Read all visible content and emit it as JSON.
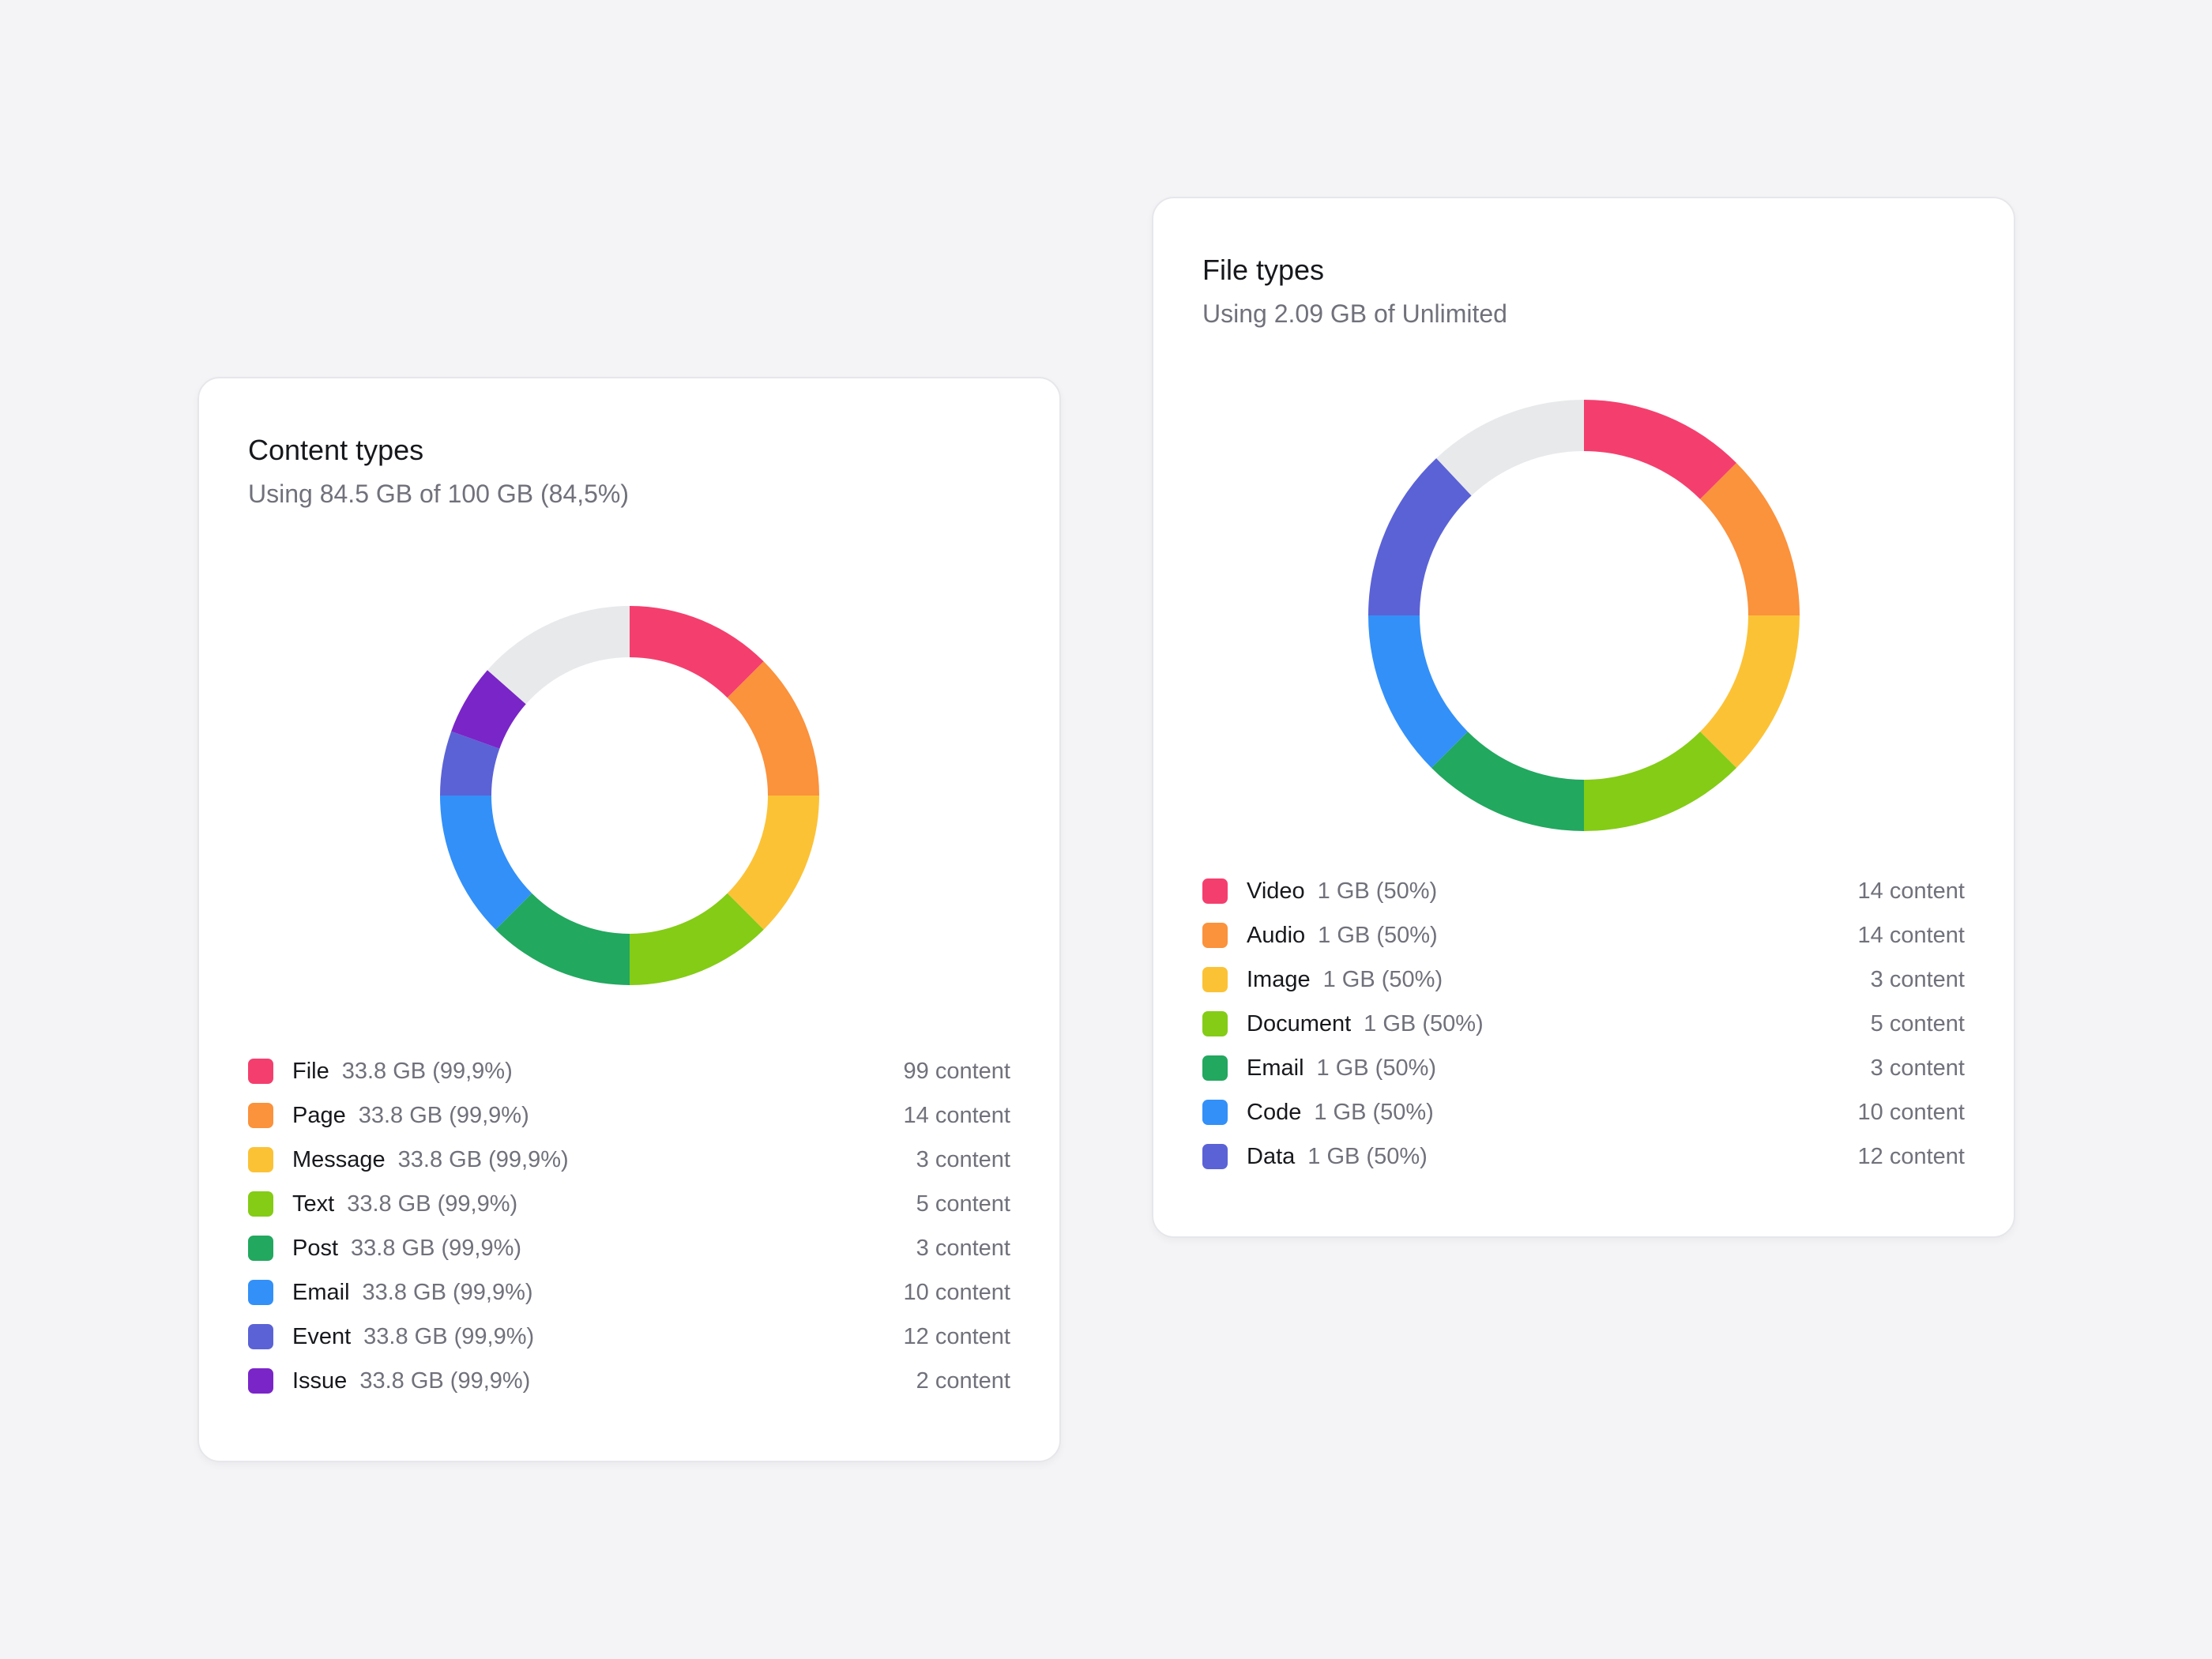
{
  "chart_data": [
    {
      "type": "pie",
      "title": "Content types",
      "subtitle": "Using 84.5 GB of 100 GB (84,5%)",
      "slices": [
        {
          "name": "File",
          "size_label": "33.8 GB (99,9%)",
          "count_label": "99 content",
          "value": 12.5,
          "color": "#f43f6e"
        },
        {
          "name": "Page",
          "size_label": "33.8 GB (99,9%)",
          "count_label": "14 content",
          "value": 12.5,
          "color": "#fb923c"
        },
        {
          "name": "Message",
          "size_label": "33.8 GB (99,9%)",
          "count_label": "3 content",
          "value": 12.5,
          "color": "#fcc236"
        },
        {
          "name": "Text",
          "size_label": "33.8 GB (99,9%)",
          "count_label": "5 content",
          "value": 12.5,
          "color": "#84cc16"
        },
        {
          "name": "Post",
          "size_label": "33.8 GB (99,9%)",
          "count_label": "3 content",
          "value": 12.5,
          "color": "#22a85f"
        },
        {
          "name": "Email",
          "size_label": "33.8 GB (99,9%)",
          "count_label": "10 content",
          "value": 12.5,
          "color": "#3390f8"
        },
        {
          "name": "Event",
          "size_label": "33.8 GB (99,9%)",
          "count_label": "12 content",
          "value": 5.5,
          "color": "#5b62d6"
        },
        {
          "name": "Issue",
          "size_label": "33.8 GB (99,9%)",
          "count_label": "2 content",
          "value": 6.0,
          "color": "#7a25c8"
        }
      ],
      "remainder": {
        "value": 13.5,
        "color": "#e8e9eb"
      }
    },
    {
      "type": "pie",
      "title": "File types",
      "subtitle": "Using 2.09 GB of Unlimited",
      "slices": [
        {
          "name": "Video",
          "size_label": "1 GB (50%)",
          "count_label": "14 content",
          "value": 12.5,
          "color": "#f43f6e"
        },
        {
          "name": "Audio",
          "size_label": "1 GB (50%)",
          "count_label": "14 content",
          "value": 12.5,
          "color": "#fb923c"
        },
        {
          "name": "Image",
          "size_label": "1 GB (50%)",
          "count_label": "3 content",
          "value": 12.5,
          "color": "#fcc236"
        },
        {
          "name": "Document",
          "size_label": "1 GB (50%)",
          "count_label": "5 content",
          "value": 12.5,
          "color": "#84cc16"
        },
        {
          "name": "Email",
          "size_label": "1 GB (50%)",
          "count_label": "3 content",
          "value": 12.5,
          "color": "#22a85f"
        },
        {
          "name": "Code",
          "size_label": "1 GB (50%)",
          "count_label": "10 content",
          "value": 12.5,
          "color": "#3390f8"
        },
        {
          "name": "Data",
          "size_label": "1 GB (50%)",
          "count_label": "12 content",
          "value": 13.0,
          "color": "#5b62d6"
        }
      ],
      "remainder": {
        "value": 12.0,
        "color": "#e8e9eb"
      }
    }
  ]
}
